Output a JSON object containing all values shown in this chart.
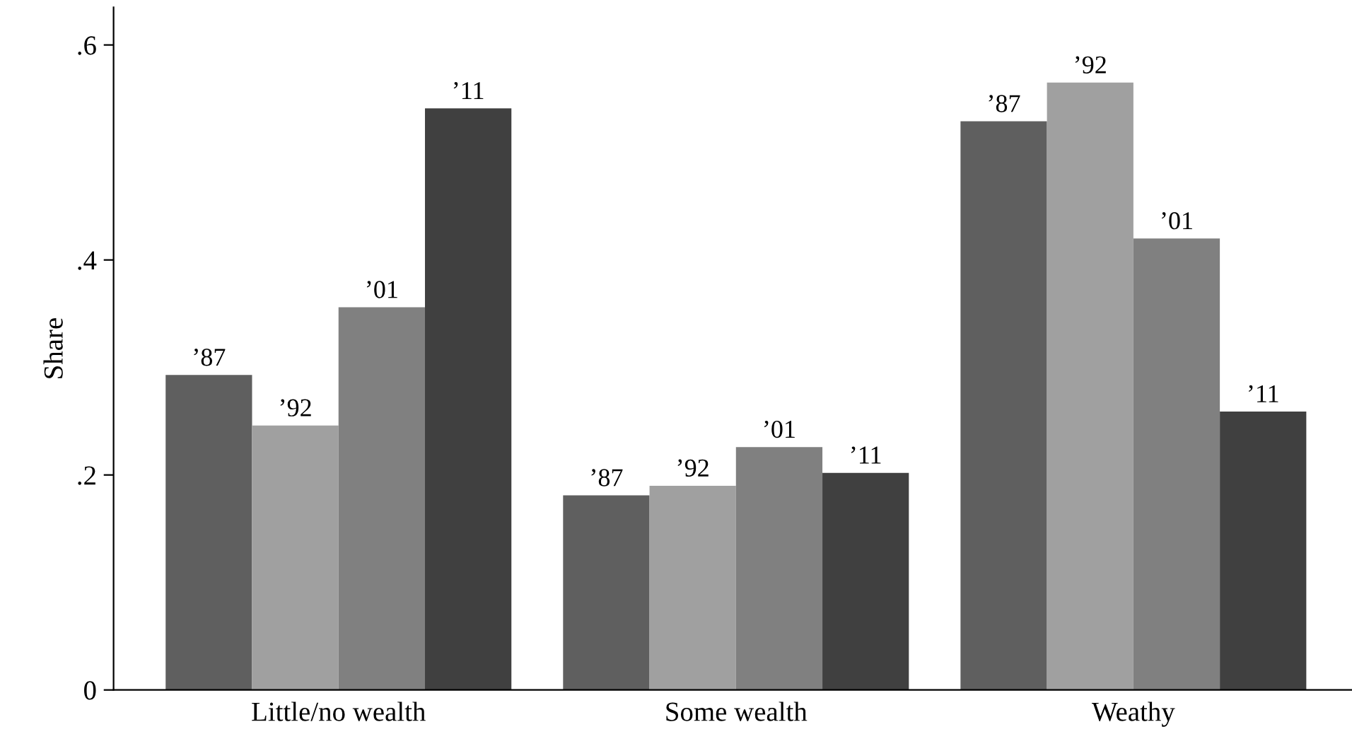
{
  "chart_data": {
    "type": "bar",
    "ylabel": "Share",
    "categories": [
      "Little/no wealth",
      "Some wealth",
      "Weathy"
    ],
    "series": [
      {
        "name": "’87",
        "color": "#5f5f5f",
        "values": [
          0.293,
          0.181,
          0.529
        ]
      },
      {
        "name": "’92",
        "color": "#a0a0a0",
        "values": [
          0.246,
          0.19,
          0.565
        ]
      },
      {
        "name": "’01",
        "color": "#808080",
        "values": [
          0.356,
          0.226,
          0.42
        ]
      },
      {
        "name": "’11",
        "color": "#404040",
        "values": [
          0.541,
          0.202,
          0.259
        ]
      }
    ],
    "ylim": [
      0,
      0.635
    ],
    "yticks": [
      0,
      {
        "value": 0.2,
        "label": ".2"
      },
      {
        "value": 0.4,
        "label": ".4"
      },
      {
        "value": 0.6,
        "label": ".6"
      }
    ],
    "grid": false,
    "legend": false
  }
}
